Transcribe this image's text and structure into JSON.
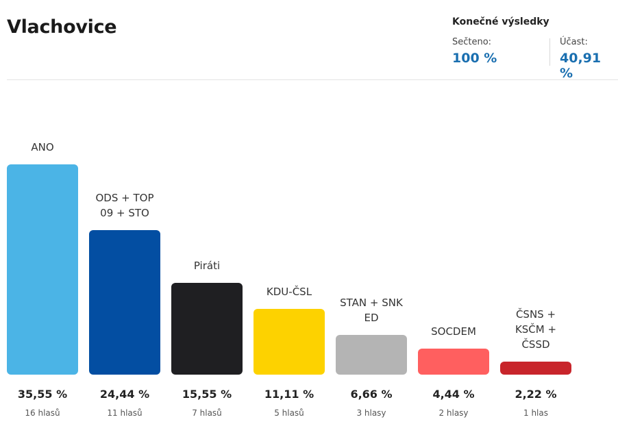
{
  "header": {
    "title": "Vlachovice",
    "results_title": "Konečné výsledky",
    "counted_label": "Sečteno:",
    "counted_value": "100 %",
    "turnout_label": "Účast:",
    "turnout_value": "40,91 %"
  },
  "chart_data": {
    "type": "bar",
    "title": "",
    "xlabel": "",
    "ylabel": "",
    "ylim": [
      0,
      35.55
    ],
    "categories": [
      "ANO",
      "ODS + TOP 09 + STO",
      "Piráti",
      "KDU-ČSL",
      "STAN + SNK ED",
      "SOCDEM",
      "ČSNS + KSČM + ČSSD"
    ],
    "values": [
      35.55,
      24.44,
      15.55,
      11.11,
      6.66,
      4.44,
      2.22
    ],
    "value_labels": [
      "35,55 %",
      "24,44 %",
      "15,55 %",
      "11,11 %",
      "6,66 %",
      "4,44 %",
      "2,22 %"
    ],
    "votes_labels": [
      "16 hlasů",
      "11 hlasů",
      "7 hlasů",
      "5 hlasů",
      "3 hlasy",
      "2 hlasy",
      "1 hlas"
    ],
    "colors": [
      "#4bb4e6",
      "#034ea2",
      "#1f1f22",
      "#fdd200",
      "#b4b4b4",
      "#ff5f5f",
      "#c8252b"
    ]
  }
}
